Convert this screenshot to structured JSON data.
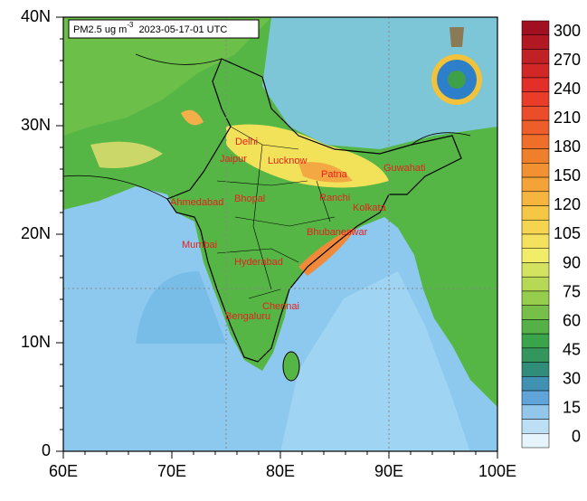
{
  "title": {
    "prefix": "PM2.5 ug m",
    "exponent": "-3",
    "date": "2023-05-17-01 UTC"
  },
  "x_axis": {
    "labels": [
      "60E",
      "70E",
      "80E",
      "90E",
      "100E"
    ]
  },
  "y_axis": {
    "labels": [
      "40N",
      "30N",
      "20N",
      "10N",
      "0"
    ]
  },
  "cities": [
    "Delhi",
    "Jaipur",
    "Lucknow",
    "Patna",
    "Guwahati",
    "Ahmedabad",
    "Bhopal",
    "Ranchi",
    "Kolkata",
    "Bhubaneswar",
    "Mumbai",
    "Hyderabad",
    "Chennai",
    "Bengaluru"
  ],
  "colorbar": {
    "labels": [
      300,
      270,
      240,
      210,
      180,
      150,
      120,
      105,
      90,
      75,
      60,
      45,
      30,
      15,
      0
    ]
  }
}
